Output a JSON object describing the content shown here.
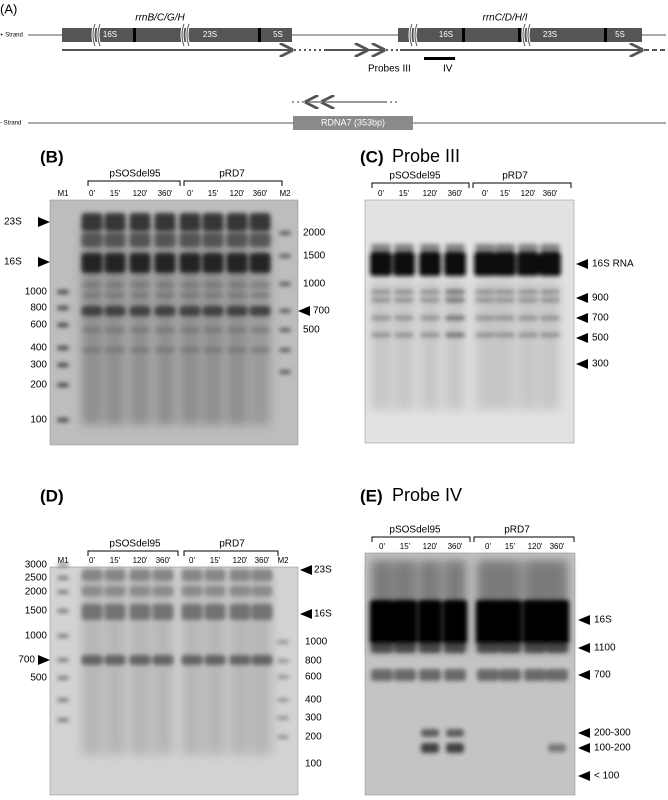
{
  "panel_a": {
    "label": "(A)",
    "plus_strand": "+ Strand",
    "minus_strand": "- Strand",
    "operon_1": {
      "name": "rrnB/C/G/H",
      "genes": [
        "16S",
        "23S",
        "5S"
      ]
    },
    "operon_2": {
      "name": "rrnC/D/H/I",
      "genes": [
        "16S",
        "23S",
        "5S"
      ]
    },
    "probes": [
      "Probes III",
      "IV"
    ],
    "rdna": "RDNA7 (353bp)"
  },
  "panel_b": {
    "label": "(B)",
    "groups": [
      "pSOSdel95",
      "pRD7"
    ],
    "lanes": [
      "M1",
      "0'",
      "15'",
      "120'",
      "360'",
      "0'",
      "15'",
      "120'",
      "360'",
      "M2"
    ],
    "left_labels": [
      "23S",
      "16S",
      "1000",
      "800",
      "600",
      "400",
      "300",
      "200",
      "100"
    ],
    "right_labels": [
      "2000",
      "1500",
      "1000",
      "700",
      "500"
    ]
  },
  "panel_c": {
    "label": "(C)",
    "title": "Probe III",
    "groups": [
      "pSOSdel95",
      "pRD7"
    ],
    "lanes": [
      "0'",
      "15'",
      "120'",
      "360'",
      "0'",
      "15'",
      "120'",
      "360'"
    ],
    "right_labels": [
      "16S RNA",
      "900",
      "700",
      "500",
      "300"
    ]
  },
  "panel_d": {
    "label": "(D)",
    "groups": [
      "pSOSdel95",
      "pRD7"
    ],
    "lanes": [
      "M1",
      "0'",
      "15'",
      "120'",
      "360'",
      "0'",
      "15'",
      "120'",
      "360'",
      "M2"
    ],
    "left_labels": [
      "3000",
      "2500",
      "2000",
      "1500",
      "1000",
      "700",
      "500"
    ],
    "right_labels": [
      "23S",
      "16S",
      "1000",
      "800",
      "600",
      "400",
      "300",
      "200",
      "100"
    ]
  },
  "panel_e": {
    "label": "(E)",
    "title": "Probe IV",
    "groups": [
      "pSOSdel95",
      "pRD7"
    ],
    "lanes": [
      "0'",
      "15'",
      "120'",
      "360'",
      "0'",
      "15'",
      "120'",
      "360'"
    ],
    "right_labels": [
      "16S",
      "1100",
      "700",
      "200-300",
      "100-200",
      "< 100"
    ]
  }
}
